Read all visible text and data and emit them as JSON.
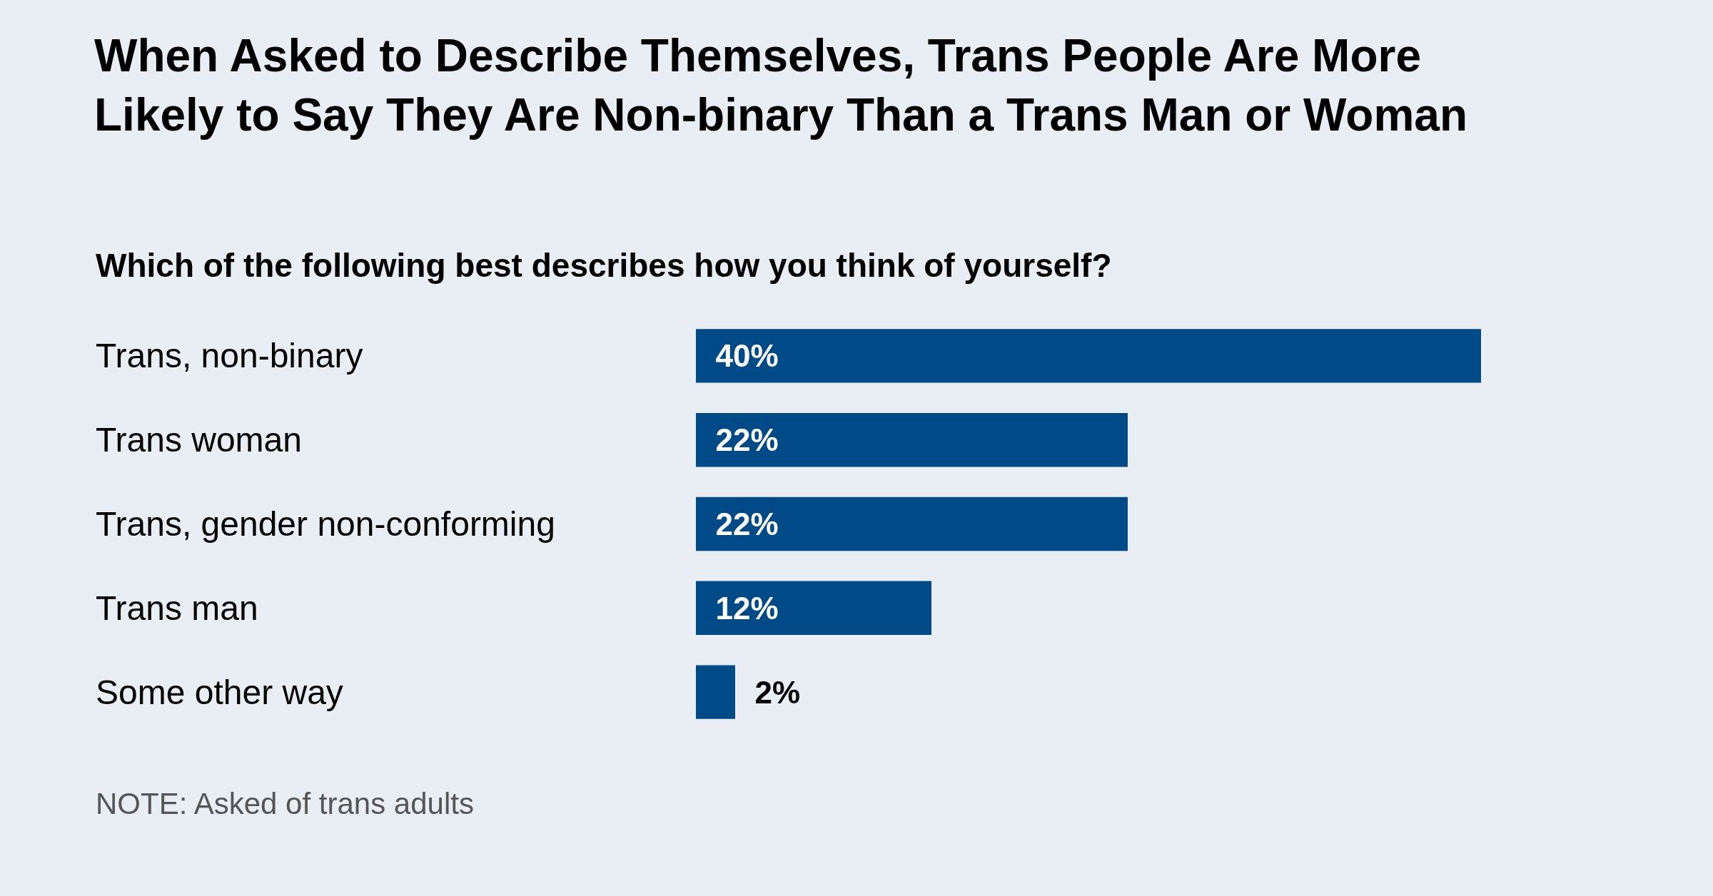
{
  "chart_data": {
    "type": "bar",
    "orientation": "horizontal",
    "title": "When Asked to Describe Themselves, Trans People Are More Likely to Say They Are Non-binary Than a Trans Man or Woman",
    "subtitle": "Which of the following best describes how you think of yourself?",
    "categories": [
      "Trans, non-binary",
      "Trans woman",
      "Trans, gender non-conforming",
      "Trans man",
      "Some other way"
    ],
    "values": [
      40,
      22,
      22,
      12,
      2
    ],
    "value_labels": [
      "40%",
      "22%",
      "22%",
      "12%",
      "2%"
    ],
    "color": "#004a87",
    "xlim": [
      0,
      40
    ],
    "legend": false,
    "annotations": [
      "NOTE: Asked of trans adults"
    ]
  }
}
